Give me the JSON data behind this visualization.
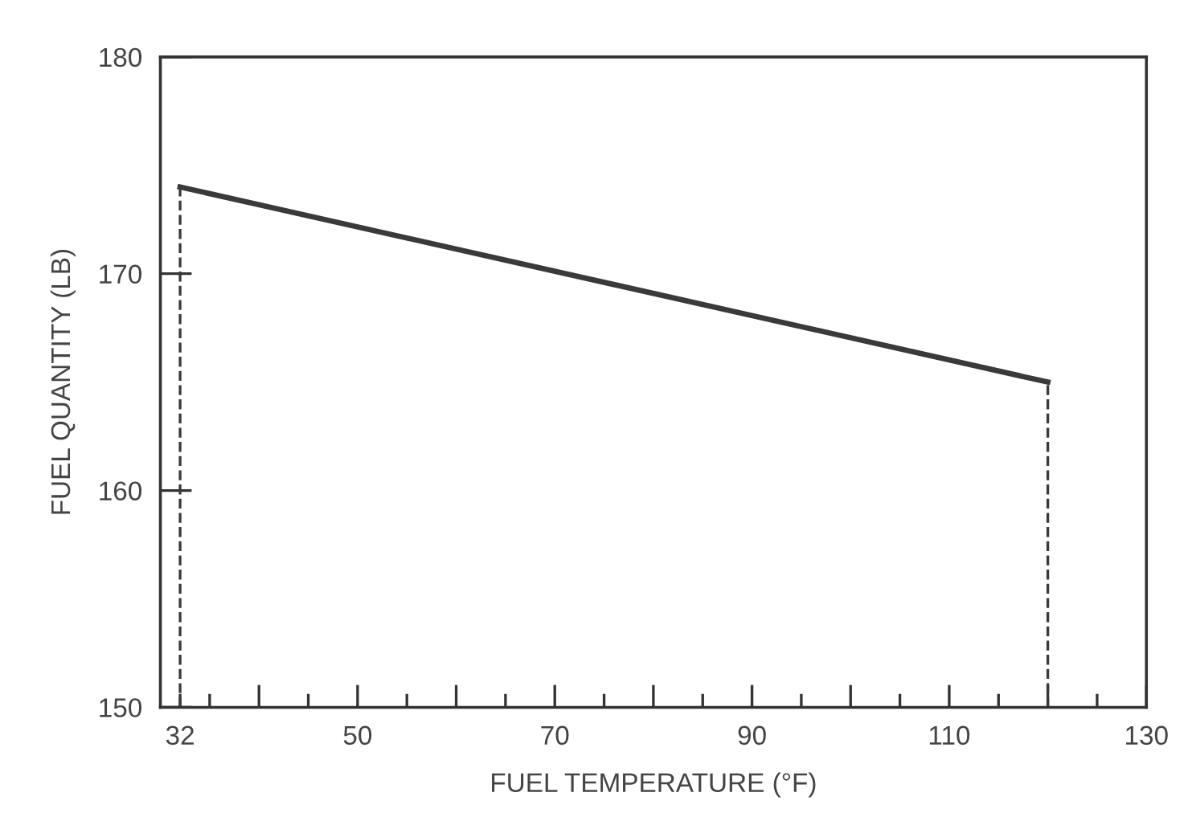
{
  "chart_data": {
    "type": "line",
    "xlabel": "FUEL TEMPERATURE (°F)",
    "ylabel": "FUEL QUANTITY (LB)",
    "x": [
      32,
      120
    ],
    "series": [
      {
        "color": "#3a3a3a",
        "values": [
          174,
          165
        ]
      }
    ],
    "xlim": [
      30,
      130
    ],
    "ylim": [
      150,
      180
    ],
    "xticks": [
      32,
      {
        "value": 35,
        "label": null
      },
      {
        "value": 40,
        "label": null
      },
      {
        "value": 45,
        "label": null
      },
      50,
      {
        "value": 55,
        "label": null
      },
      {
        "value": 60,
        "label": null
      },
      {
        "value": 65,
        "label": null
      },
      70,
      {
        "value": 75,
        "label": null
      },
      {
        "value": 80,
        "label": null
      },
      {
        "value": 85,
        "label": null
      },
      90,
      {
        "value": 95,
        "label": null
      },
      {
        "value": 100,
        "label": null
      },
      {
        "value": 105,
        "label": null
      },
      110,
      {
        "value": 115,
        "label": null
      },
      {
        "value": 120,
        "label": null
      },
      {
        "value": 125,
        "label": null
      },
      130
    ],
    "yticks": [
      150,
      160,
      170,
      180
    ],
    "ref_lines": [
      {
        "axis": "x",
        "value": 32,
        "line_style": "dashed",
        "color": "#3a3a3a"
      },
      {
        "axis": "x",
        "value": 120,
        "line_style": "dashed",
        "color": "#3a3a3a"
      }
    ],
    "grid": false,
    "legend": false,
    "marker": "none",
    "line_style": "solid"
  }
}
